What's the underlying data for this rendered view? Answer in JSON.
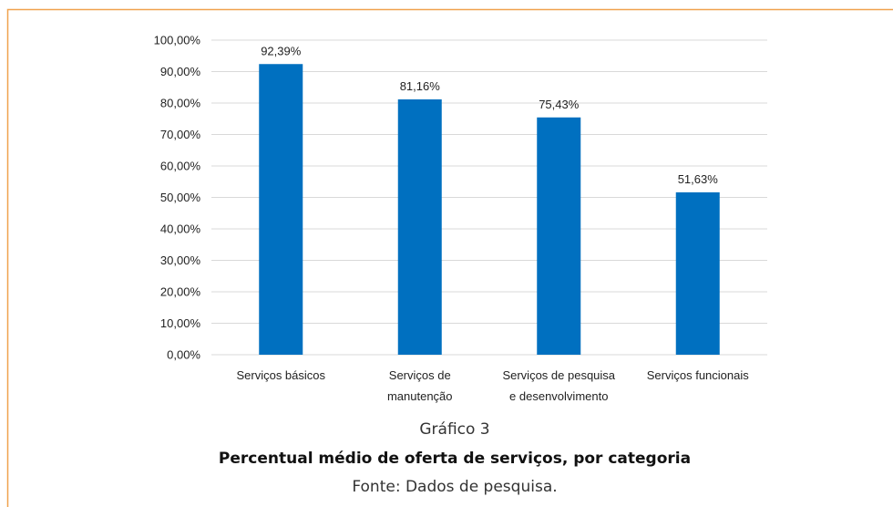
{
  "chart_data": {
    "type": "bar",
    "categories": [
      [
        "Serviços básicos"
      ],
      [
        "Serviços de",
        "manutenção"
      ],
      [
        "Serviços de pesquisa",
        "e desenvolvimento"
      ],
      [
        "Serviços funcionais"
      ]
    ],
    "values": [
      92.39,
      81.16,
      75.43,
      51.63
    ],
    "value_labels": [
      "92,39%",
      "81,16%",
      "75,43%",
      "51,63%"
    ],
    "color": "#0070c0",
    "ylim": [
      0,
      100
    ],
    "yticks": [
      {
        "value": 0,
        "label": "0,00%"
      },
      {
        "value": 10,
        "label": "10,00%"
      },
      {
        "value": 20,
        "label": "20,00%"
      },
      {
        "value": 30,
        "label": "30,00%"
      },
      {
        "value": 40,
        "label": "40,00%"
      },
      {
        "value": 50,
        "label": "50,00%"
      },
      {
        "value": 60,
        "label": "60,00%"
      },
      {
        "value": 70,
        "label": "70,00%"
      },
      {
        "value": 80,
        "label": "80,00%"
      },
      {
        "value": 90,
        "label": "90,00%"
      },
      {
        "value": 100,
        "label": "100,00%"
      }
    ],
    "grid": true,
    "figure_label": "Gráfico 3",
    "caption": "Percentual médio de oferta de serviços, por categoria",
    "source": "Fonte: Dados de pesquisa."
  }
}
